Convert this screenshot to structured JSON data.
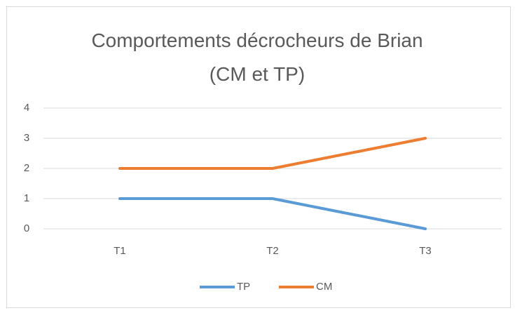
{
  "chart_data": {
    "type": "line",
    "title": "Comportements décrocheurs de Brian (CM et TP)",
    "categories": [
      "T1",
      "T2",
      "T3"
    ],
    "series": [
      {
        "name": "TP",
        "color": "#5b9bd5",
        "values": [
          1,
          1,
          0
        ]
      },
      {
        "name": "CM",
        "color": "#ed7d31",
        "values": [
          2,
          2,
          3
        ]
      }
    ],
    "ylim": [
      0,
      4
    ],
    "yticks": [
      0,
      1,
      2,
      3,
      4
    ],
    "grid": true,
    "legend": "bottom"
  }
}
